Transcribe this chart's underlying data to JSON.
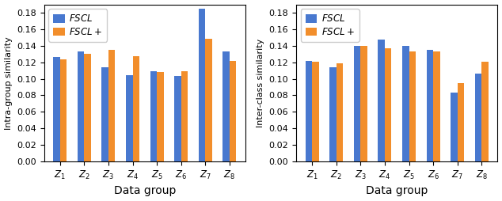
{
  "left": {
    "ylabel": "Intra-group similarity",
    "xlabel": "Data group",
    "categories": [
      "$Z_1$",
      "$Z_2$",
      "$Z_3$",
      "$Z_4$",
      "$Z_5$",
      "$Z_6$",
      "$Z_7$",
      "$Z_8$"
    ],
    "fscl": [
      0.126,
      0.133,
      0.114,
      0.104,
      0.109,
      0.103,
      0.185,
      0.133
    ],
    "fscl_plus": [
      0.124,
      0.13,
      0.135,
      0.127,
      0.108,
      0.109,
      0.148,
      0.122
    ],
    "ylim": [
      0.0,
      0.19
    ],
    "yticks": [
      0.0,
      0.02,
      0.04,
      0.06,
      0.08,
      0.1,
      0.12,
      0.14,
      0.16,
      0.18
    ]
  },
  "right": {
    "ylabel": "Inter-class similarity",
    "xlabel": "Data group",
    "categories": [
      "$Z_1$",
      "$Z_2$",
      "$Z_3$",
      "$Z_4$",
      "$Z_5$",
      "$Z_6$",
      "$Z_7$",
      "$Z_8$"
    ],
    "fscl": [
      0.122,
      0.114,
      0.14,
      0.147,
      0.14,
      0.135,
      0.083,
      0.106
    ],
    "fscl_plus": [
      0.121,
      0.119,
      0.14,
      0.137,
      0.133,
      0.133,
      0.095,
      0.121
    ],
    "ylim": [
      0.0,
      0.19
    ],
    "yticks": [
      0.0,
      0.02,
      0.04,
      0.06,
      0.08,
      0.1,
      0.12,
      0.14,
      0.16,
      0.18
    ]
  },
  "color_fscl": "#4878cf",
  "color_fscl_plus": "#f28e2b",
  "bar_width": 0.28,
  "legend_fscl": "$\\it{FSCL}$",
  "legend_fscl_plus": "$\\it{FSCL+}$"
}
